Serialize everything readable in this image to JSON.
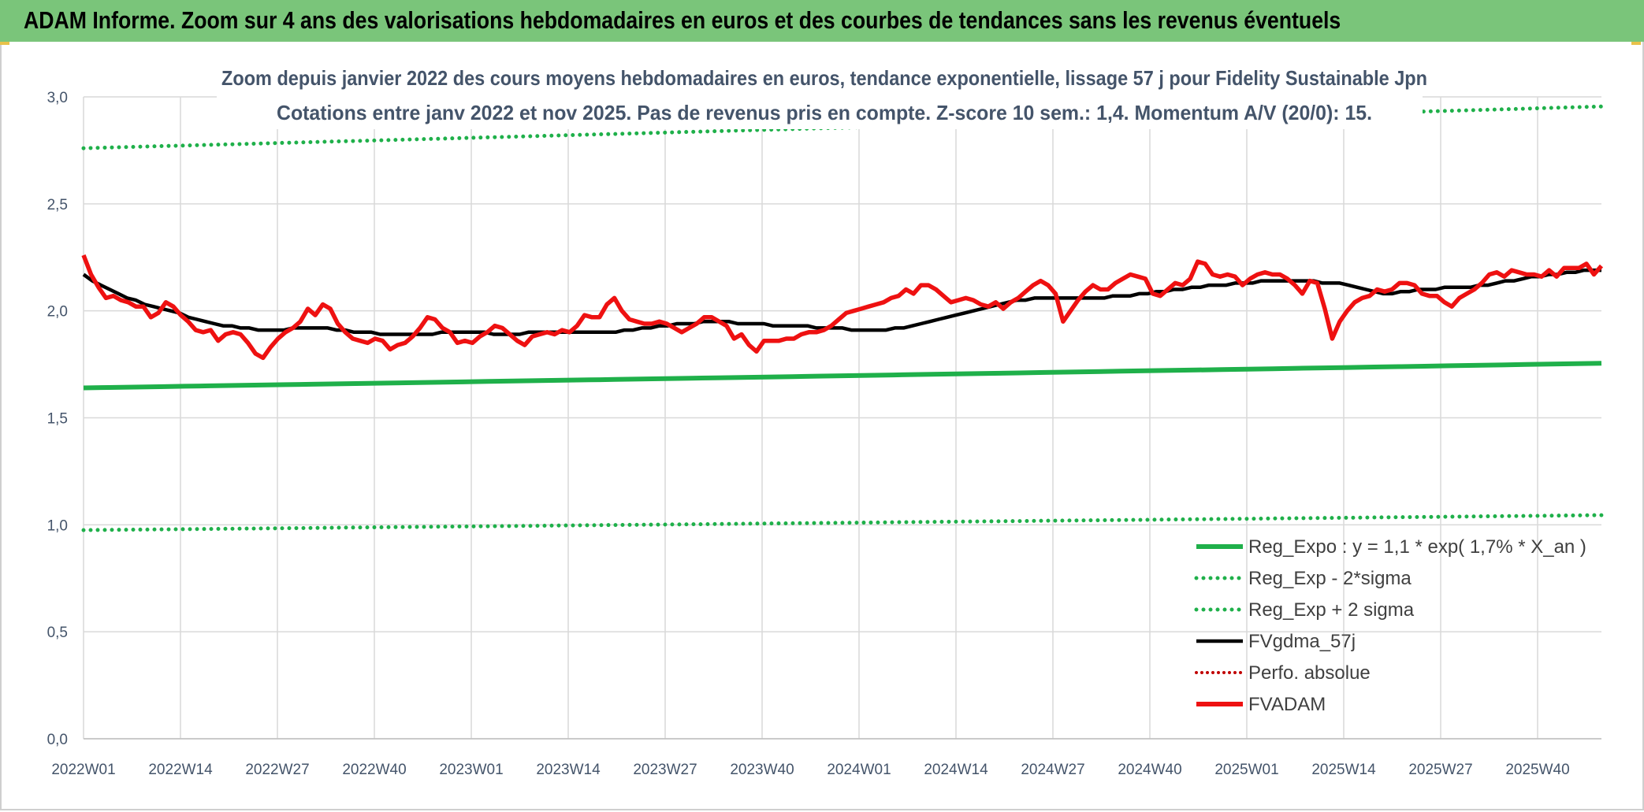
{
  "header": {
    "title": "ADAM Informe. Zoom sur 4 ans des valorisations hebdomadaires en euros et des courbes de tendances sans les revenus éventuels"
  },
  "chart_data": {
    "type": "line",
    "title_line1": "Zoom depuis janvier 2022 des cours moyens hebdomadaires en euros, tendance exponentielle, lissage 57 j pour Fidelity Sustainable Jpn",
    "title_line2": "Cotations entre janv 2022 et nov 2025. Pas de revenus pris en compte. Z-score 10 sem.: 1,4. Momentum A/V (20/0): 15.",
    "ylim": [
      0,
      3.0
    ],
    "y_ticks": [
      "0,0",
      "0,5",
      "1,0",
      "1,5",
      "2,0",
      "2,5",
      "3,0"
    ],
    "x_ticks": [
      "2022W01",
      "2022W14",
      "2022W27",
      "2022W40",
      "2023W01",
      "2023W14",
      "2023W27",
      "2023W40",
      "2024W01",
      "2024W14",
      "2024W27",
      "2024W40",
      "2025W01",
      "2025W14",
      "2025W27",
      "2025W40"
    ],
    "grid": true,
    "legend_position": "bottom-right",
    "colors": {
      "green": "#1fb04a",
      "black": "#000000",
      "red": "#ee1111",
      "red_dotted": "#c00000"
    },
    "series": [
      {
        "name": "Reg_Expo : y = 1,1 * exp( 1,7% *  X_an )",
        "style": "solid-green",
        "start": 1.64,
        "end": 1.755
      },
      {
        "name": "Reg_Exp - 2*sigma",
        "style": "dotted-green",
        "start": 0.975,
        "end": 1.045
      },
      {
        "name": "Reg_Exp + 2 sigma",
        "style": "dotted-green",
        "start": 2.76,
        "end": 2.955
      },
      {
        "name": "FVgdma_57j",
        "style": "solid-black",
        "values": [
          2.17,
          2.14,
          2.12,
          2.1,
          2.08,
          2.06,
          2.05,
          2.03,
          2.02,
          2.01,
          2.0,
          1.99,
          1.97,
          1.96,
          1.95,
          1.94,
          1.93,
          1.93,
          1.92,
          1.92,
          1.91,
          1.91,
          1.91,
          1.91,
          1.92,
          1.92,
          1.92,
          1.92,
          1.92,
          1.91,
          1.91,
          1.9,
          1.9,
          1.9,
          1.89,
          1.89,
          1.89,
          1.89,
          1.89,
          1.89,
          1.89,
          1.9,
          1.9,
          1.9,
          1.9,
          1.9,
          1.9,
          1.89,
          1.89,
          1.89,
          1.89,
          1.9,
          1.9,
          1.9,
          1.9,
          1.9,
          1.9,
          1.9,
          1.9,
          1.9,
          1.9,
          1.9,
          1.91,
          1.91,
          1.92,
          1.92,
          1.93,
          1.93,
          1.94,
          1.94,
          1.94,
          1.95,
          1.95,
          1.95,
          1.95,
          1.94,
          1.94,
          1.94,
          1.94,
          1.93,
          1.93,
          1.93,
          1.93,
          1.93,
          1.92,
          1.92,
          1.92,
          1.92,
          1.91,
          1.91,
          1.91,
          1.91,
          1.91,
          1.92,
          1.92,
          1.93,
          1.94,
          1.95,
          1.96,
          1.97,
          1.98,
          1.99,
          2.0,
          2.01,
          2.02,
          2.03,
          2.04,
          2.05,
          2.05,
          2.06,
          2.06,
          2.06,
          2.06,
          2.06,
          2.06,
          2.06,
          2.06,
          2.06,
          2.07,
          2.07,
          2.07,
          2.08,
          2.08,
          2.09,
          2.09,
          2.1,
          2.1,
          2.11,
          2.11,
          2.12,
          2.12,
          2.12,
          2.13,
          2.13,
          2.13,
          2.14,
          2.14,
          2.14,
          2.14,
          2.14,
          2.14,
          2.14,
          2.13,
          2.13,
          2.13,
          2.12,
          2.11,
          2.1,
          2.09,
          2.08,
          2.08,
          2.09,
          2.09,
          2.1,
          2.1,
          2.1,
          2.11,
          2.11,
          2.11,
          2.11,
          2.12,
          2.12,
          2.13,
          2.14,
          2.14,
          2.15,
          2.16,
          2.16,
          2.17,
          2.17,
          2.18,
          2.18,
          2.19,
          2.19,
          2.19
        ]
      },
      {
        "name": "Perfo. absolue",
        "style": "dotted-red",
        "values": []
      },
      {
        "name": "FVADAM",
        "style": "solid-red",
        "values": [
          2.26,
          2.17,
          2.11,
          2.06,
          2.07,
          2.05,
          2.04,
          2.02,
          2.02,
          1.97,
          1.99,
          2.04,
          2.02,
          1.98,
          1.95,
          1.91,
          1.9,
          1.91,
          1.86,
          1.89,
          1.9,
          1.89,
          1.85,
          1.8,
          1.78,
          1.83,
          1.87,
          1.9,
          1.92,
          1.95,
          2.01,
          1.98,
          2.03,
          2.01,
          1.94,
          1.9,
          1.87,
          1.86,
          1.85,
          1.87,
          1.86,
          1.82,
          1.84,
          1.85,
          1.88,
          1.92,
          1.97,
          1.96,
          1.92,
          1.9,
          1.85,
          1.86,
          1.85,
          1.88,
          1.9,
          1.93,
          1.92,
          1.89,
          1.86,
          1.84,
          1.88,
          1.89,
          1.9,
          1.89,
          1.91,
          1.9,
          1.93,
          1.98,
          1.97,
          1.97,
          2.03,
          2.06,
          2.0,
          1.96,
          1.95,
          1.94,
          1.94,
          1.95,
          1.94,
          1.92,
          1.9,
          1.92,
          1.94,
          1.97,
          1.97,
          1.95,
          1.93,
          1.87,
          1.89,
          1.84,
          1.81,
          1.86,
          1.86,
          1.86,
          1.87,
          1.87,
          1.89,
          1.9,
          1.9,
          1.91,
          1.93,
          1.96,
          1.99,
          2.0,
          2.01,
          2.02,
          2.03,
          2.04,
          2.06,
          2.07,
          2.1,
          2.08,
          2.12,
          2.12,
          2.1,
          2.07,
          2.04,
          2.05,
          2.06,
          2.05,
          2.03,
          2.02,
          2.04,
          2.01,
          2.04,
          2.06,
          2.09,
          2.12,
          2.14,
          2.12,
          2.08,
          1.95,
          2.0,
          2.05,
          2.09,
          2.12,
          2.1,
          2.1,
          2.13,
          2.15,
          2.17,
          2.16,
          2.15,
          2.08,
          2.07,
          2.1,
          2.13,
          2.12,
          2.15,
          2.23,
          2.22,
          2.17,
          2.16,
          2.17,
          2.16,
          2.12,
          2.15,
          2.17,
          2.18,
          2.17,
          2.17,
          2.15,
          2.12,
          2.08,
          2.14,
          2.13,
          2.01,
          1.87,
          1.95,
          2.0,
          2.04,
          2.06,
          2.07,
          2.1,
          2.09,
          2.1,
          2.13,
          2.13,
          2.12,
          2.08,
          2.07,
          2.07,
          2.04,
          2.02,
          2.06,
          2.08,
          2.1,
          2.13,
          2.17,
          2.18,
          2.16,
          2.19,
          2.18,
          2.17,
          2.17,
          2.16,
          2.19,
          2.16,
          2.2,
          2.2,
          2.2,
          2.22,
          2.17,
          2.21
        ]
      }
    ]
  }
}
